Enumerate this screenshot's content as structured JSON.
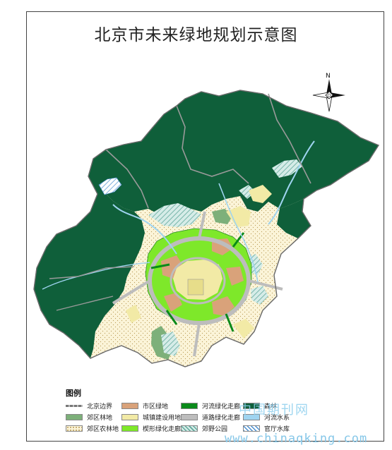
{
  "title": "北京市未来绿地规划示意图",
  "north_label": "N",
  "legend": {
    "title": "图例",
    "items": [
      {
        "label": "北京边界",
        "style": "boundary"
      },
      {
        "label": "市区绿地",
        "color": "#d9a27a"
      },
      {
        "label": "河流绿化走廊",
        "color": "#0a8a1a"
      },
      {
        "label": "森林",
        "color": "#0f5f3a"
      },
      {
        "label": "郊区林地",
        "color": "#7db07a"
      },
      {
        "label": "城镇建设用地",
        "color": "#f2eaa6"
      },
      {
        "label": "道路绿化走廊",
        "color": "#bdbdbd"
      },
      {
        "label": "河流水系",
        "color": "#9fd4f0"
      },
      {
        "label": "郊区农林地",
        "color": "#fbf4d8",
        "style": "dotted"
      },
      {
        "label": "楔形绿化走廊",
        "color": "#7ee82a"
      },
      {
        "label": "郊野公园",
        "style": "hatch-green"
      },
      {
        "label": "官厅水库",
        "style": "hatch-blue"
      }
    ]
  },
  "watermark": {
    "cn": "中国期刊网",
    "url": "www.chinaqking.com"
  }
}
